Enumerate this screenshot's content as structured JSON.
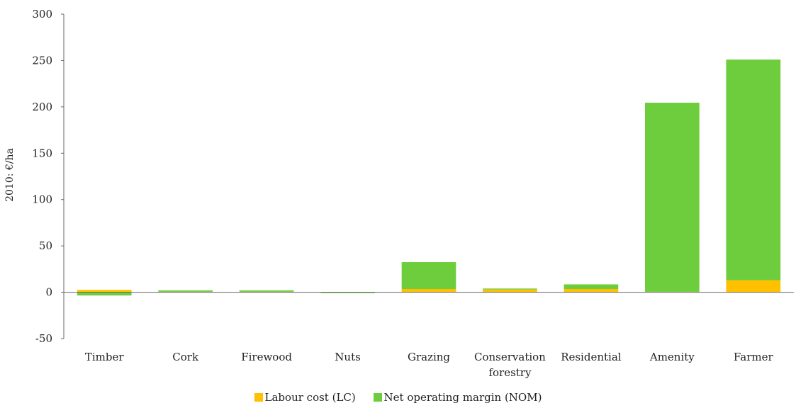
{
  "chart_data": {
    "type": "bar",
    "stacked": true,
    "ylabel": "2010: €/ha",
    "xlabel": "",
    "ylim": [
      -50,
      300
    ],
    "yticks": [
      -50,
      0,
      50,
      100,
      150,
      200,
      250,
      300
    ],
    "grid": false,
    "legend_position": "bottom",
    "categories": [
      [
        "Timber"
      ],
      [
        "Cork"
      ],
      [
        "Firewood"
      ],
      [
        "Nuts"
      ],
      [
        "Grazing"
      ],
      [
        "Conservation",
        "forestry"
      ],
      [
        "Residential"
      ],
      [
        "Amenity"
      ],
      [
        "Farmer"
      ]
    ],
    "series": [
      {
        "name": "Labour cost (LC)",
        "color": "#FFC000",
        "values": [
          2.5,
          0.5,
          0.5,
          0,
          3.5,
          3,
          3.5,
          0.5,
          13
        ]
      },
      {
        "name": "Net operating margin (NOM)",
        "color": "#6DCD3D",
        "values": [
          -3.5,
          1.5,
          1.5,
          -1,
          29,
          1,
          5,
          204,
          238
        ]
      }
    ]
  }
}
